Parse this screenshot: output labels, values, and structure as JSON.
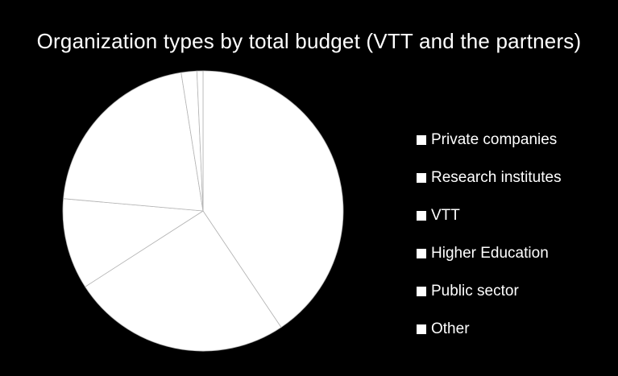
{
  "chart_data": {
    "type": "pie",
    "title": "Organization types by total budget (VTT and the partners)",
    "categories": [
      "Private companies",
      "Research institutes",
      "VTT",
      "Higher Education",
      "Public sector",
      "Other"
    ],
    "values": [
      40.6,
      25.3,
      10.5,
      21.1,
      1.8,
      0.7
    ],
    "slice_order_clockwise_from_top": [
      "Private companies",
      "Research institutes",
      "VTT",
      "Higher Education",
      "Public sector",
      "Other"
    ],
    "legend_position": "right",
    "colors": {
      "background": "#000000",
      "slice_fill": "#ffffff",
      "slice_border": "#b4b4b4",
      "text": "#ffffff"
    }
  }
}
